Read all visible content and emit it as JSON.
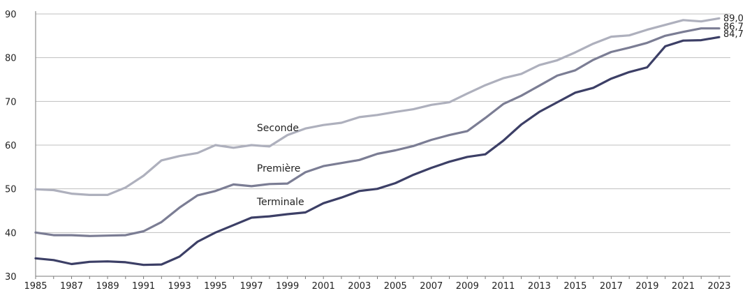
{
  "chart_data": {
    "type": "line",
    "xlim": [
      1985,
      2023
    ],
    "ylim": [
      30,
      90
    ],
    "yticks": [
      30,
      40,
      50,
      60,
      70,
      80,
      90
    ],
    "xticks": [
      1985,
      1987,
      1989,
      1991,
      1993,
      1995,
      1997,
      1999,
      2001,
      2003,
      2005,
      2007,
      2009,
      2011,
      2013,
      2015,
      2017,
      2019,
      2021,
      2023
    ],
    "grid": true,
    "x": [
      1985,
      1986,
      1987,
      1988,
      1989,
      1990,
      1991,
      1992,
      1993,
      1994,
      1995,
      1996,
      1997,
      1998,
      1999,
      2000,
      2001,
      2002,
      2003,
      2004,
      2005,
      2006,
      2007,
      2008,
      2009,
      2010,
      2011,
      2012,
      2013,
      2014,
      2015,
      2016,
      2017,
      2018,
      2019,
      2020,
      2021,
      2022,
      2023
    ],
    "series": [
      {
        "name": "Seconde",
        "color": "#aeb0bd",
        "end_label": "89,0",
        "values": [
          49.9,
          49.7,
          48.9,
          48.6,
          48.6,
          50.3,
          53.0,
          56.5,
          57.5,
          58.2,
          60.0,
          59.4,
          60.0,
          59.7,
          62.3,
          63.8,
          64.6,
          65.1,
          66.4,
          66.9,
          67.6,
          68.2,
          69.2,
          69.8,
          71.8,
          73.7,
          75.3,
          76.3,
          78.3,
          79.4,
          81.2,
          83.2,
          84.8,
          85.1,
          86.4,
          87.5,
          88.6,
          88.3,
          89.0
        ]
      },
      {
        "name": "Première",
        "color": "#7b7d94",
        "end_label": "86,7",
        "values": [
          40.0,
          39.4,
          39.4,
          39.2,
          39.3,
          39.4,
          40.3,
          42.4,
          45.7,
          48.5,
          49.5,
          51.0,
          50.6,
          51.1,
          51.2,
          53.8,
          55.2,
          55.9,
          56.6,
          58.0,
          58.8,
          59.8,
          61.2,
          62.3,
          63.2,
          66.2,
          69.4,
          71.3,
          73.6,
          75.9,
          77.1,
          79.5,
          81.3,
          82.3,
          83.4,
          85.0,
          85.9,
          86.7,
          86.7
        ]
      },
      {
        "name": "Terminale",
        "color": "#3c3f66",
        "end_label": "84,7",
        "values": [
          34.1,
          33.7,
          32.8,
          33.3,
          33.4,
          33.2,
          32.6,
          32.7,
          34.5,
          37.9,
          40.0,
          41.7,
          43.4,
          43.7,
          44.2,
          44.6,
          46.7,
          48.0,
          49.5,
          50.0,
          51.3,
          53.2,
          54.8,
          56.2,
          57.3,
          57.9,
          61.0,
          64.7,
          67.6,
          69.8,
          72.0,
          73.1,
          75.2,
          76.7,
          77.8,
          82.6,
          83.9,
          84.0,
          84.7
        ]
      }
    ],
    "annotations": [
      {
        "text": "Seconde",
        "x": 1997.3,
        "y": 63.2
      },
      {
        "text": "Première",
        "x": 1997.3,
        "y": 53.9
      },
      {
        "text": "Terminale",
        "x": 1997.3,
        "y": 46.3
      }
    ]
  }
}
